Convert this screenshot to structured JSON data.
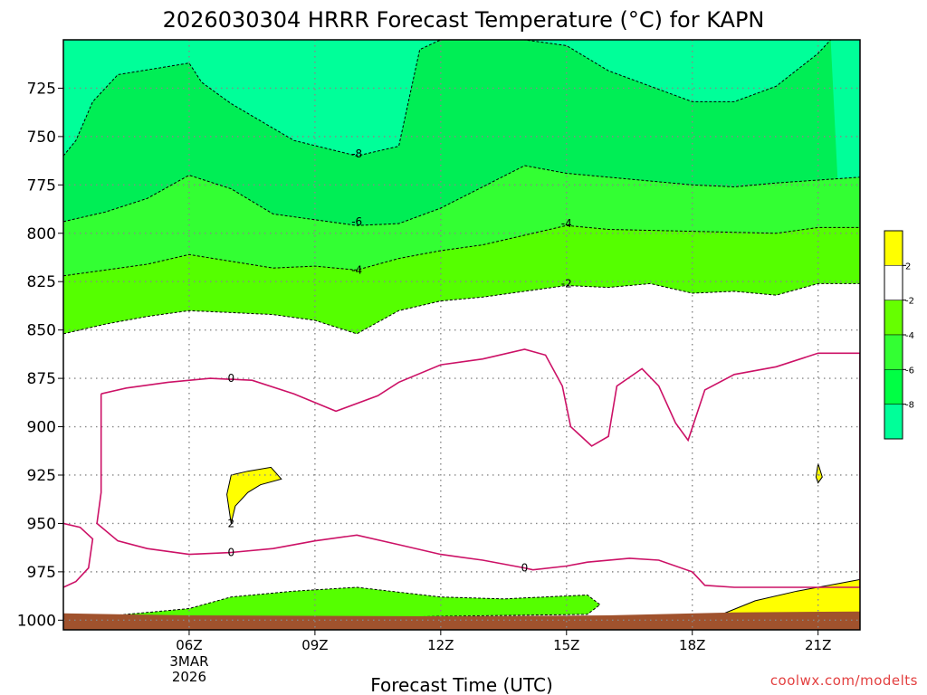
{
  "title": "2026030304 HRRR Forecast Temperature (°C) for KAPN",
  "credit": "coolwx.com/modelts",
  "chart_data": {
    "type": "contour",
    "title": "2026030304 HRRR Forecast Temperature (°C) for KAPN",
    "xlabel": "Forecast Time (UTC)",
    "ylabel": "",
    "x_ticks": [
      "06Z",
      "09Z",
      "12Z",
      "15Z",
      "18Z",
      "21Z"
    ],
    "x_tick_date": [
      "3MAR",
      "2026"
    ],
    "x_range_hours_utc": [
      3.0,
      22.0
    ],
    "y_ticks": [
      725,
      750,
      775,
      800,
      825,
      850,
      875,
      900,
      925,
      950,
      975,
      1000
    ],
    "y_range_hpa": [
      700,
      1005
    ],
    "y_reversed": true,
    "grid": true,
    "contour_levels": [
      -8,
      -6,
      -4,
      -2,
      0,
      2
    ],
    "contour_labels": [
      "-8",
      "-6",
      "-4",
      "-2",
      "0",
      "0",
      "2"
    ],
    "colorbar": {
      "placement": "right",
      "labels": [
        "2",
        "-2",
        "-4",
        "-6",
        "-8"
      ],
      "colors": [
        "#ffff00",
        "#ffffff",
        "#66ff00",
        "#33ff33",
        "#00ff44",
        "#00ff99"
      ]
    },
    "fill_colors": {
      "warm_above_0": "#ffff00",
      "range_m2_to_0": "#ffffff",
      "range_m4_to_m2": "#55ff00",
      "range_m6_to_m4": "#33ff33",
      "range_m8_to_m6": "#00ee55",
      "below_m8": "#00ff99",
      "ground": "#a0522d",
      "zero_line": "#cc1166"
    },
    "isotherms": [
      {
        "level": -8,
        "points": [
          [
            3.0,
            760
          ],
          [
            3.3,
            752
          ],
          [
            3.7,
            732
          ],
          [
            4.3,
            718
          ],
          [
            6.0,
            712
          ],
          [
            6.3,
            722
          ],
          [
            7.0,
            733
          ],
          [
            8.5,
            752
          ],
          [
            10.0,
            760
          ],
          [
            11.0,
            755
          ],
          [
            11.3,
            725
          ],
          [
            11.5,
            705
          ],
          [
            12.0,
            700
          ],
          [
            14.0,
            700
          ],
          [
            15.0,
            703
          ],
          [
            16.0,
            716
          ],
          [
            18.0,
            732
          ],
          [
            19.0,
            732
          ],
          [
            20.0,
            724
          ],
          [
            21.0,
            707
          ],
          [
            21.3,
            700
          ]
        ]
      },
      {
        "level": -6,
        "points": [
          [
            3.0,
            794
          ],
          [
            4.0,
            789
          ],
          [
            5.0,
            782
          ],
          [
            6.0,
            770
          ],
          [
            7.0,
            777
          ],
          [
            8.0,
            790
          ],
          [
            10.0,
            796
          ],
          [
            11.0,
            795
          ],
          [
            12.0,
            787
          ],
          [
            13.0,
            776
          ],
          [
            14.0,
            765
          ],
          [
            15.0,
            769
          ],
          [
            16.0,
            771
          ],
          [
            18.0,
            775
          ],
          [
            19.0,
            776
          ],
          [
            20.0,
            774
          ],
          [
            22.0,
            771
          ]
        ]
      },
      {
        "level": -4,
        "points": [
          [
            3.0,
            822
          ],
          [
            4.0,
            819
          ],
          [
            5.0,
            816
          ],
          [
            6.0,
            811
          ],
          [
            8.0,
            818
          ],
          [
            9.0,
            817
          ],
          [
            10.0,
            819
          ],
          [
            11.0,
            813
          ],
          [
            12.0,
            809
          ],
          [
            13.0,
            806
          ],
          [
            14.0,
            801
          ],
          [
            15.0,
            796
          ],
          [
            16.0,
            798
          ],
          [
            18.0,
            799
          ],
          [
            20.0,
            800
          ],
          [
            21.0,
            797
          ],
          [
            22.0,
            797
          ]
        ]
      },
      {
        "level": -2,
        "points": [
          [
            3.0,
            852
          ],
          [
            4.0,
            847
          ],
          [
            5.0,
            843
          ],
          [
            6.0,
            840
          ],
          [
            7.0,
            841
          ],
          [
            8.0,
            842
          ],
          [
            9.0,
            845
          ],
          [
            10.0,
            852
          ],
          [
            11.0,
            840
          ],
          [
            12.0,
            835
          ],
          [
            13.0,
            833
          ],
          [
            14.0,
            830
          ],
          [
            15.0,
            827
          ],
          [
            16.0,
            828
          ],
          [
            17.0,
            826
          ],
          [
            18.0,
            831
          ],
          [
            19.0,
            830
          ],
          [
            20.0,
            832
          ],
          [
            21.0,
            826
          ],
          [
            22.0,
            826
          ]
        ]
      }
    ],
    "zero_lines": [
      {
        "points": [
          [
            3.9,
            883
          ],
          [
            4.5,
            880
          ],
          [
            5.5,
            877
          ],
          [
            6.5,
            875
          ],
          [
            7.5,
            876
          ],
          [
            8.5,
            883
          ],
          [
            9.5,
            892
          ],
          [
            10.5,
            884
          ],
          [
            11.0,
            877
          ],
          [
            12.0,
            868
          ],
          [
            13.0,
            865
          ],
          [
            14.0,
            860
          ],
          [
            14.5,
            863
          ],
          [
            14.9,
            879
          ],
          [
            15.1,
            900
          ],
          [
            15.6,
            910
          ],
          [
            16.0,
            905
          ],
          [
            16.2,
            879
          ],
          [
            16.8,
            870
          ],
          [
            17.2,
            879
          ],
          [
            17.6,
            898
          ],
          [
            17.9,
            907
          ],
          [
            18.3,
            881
          ],
          [
            19.0,
            873
          ],
          [
            20.0,
            869
          ],
          [
            21.0,
            862
          ],
          [
            22.0,
            862
          ],
          [
            22.0,
            983
          ],
          [
            21.0,
            983
          ],
          [
            20.0,
            983
          ],
          [
            19.0,
            983
          ],
          [
            18.3,
            982
          ],
          [
            18.0,
            975
          ],
          [
            17.2,
            969
          ],
          [
            16.5,
            968
          ],
          [
            15.5,
            970
          ],
          [
            15.0,
            972
          ],
          [
            14.2,
            974
          ],
          [
            14.0,
            973
          ],
          [
            13.0,
            969
          ],
          [
            12.0,
            966
          ],
          [
            11.0,
            961
          ],
          [
            10.0,
            956
          ],
          [
            9.0,
            959
          ],
          [
            8.0,
            963
          ],
          [
            7.0,
            965
          ],
          [
            6.0,
            966
          ],
          [
            5.0,
            963
          ],
          [
            4.3,
            959
          ],
          [
            3.8,
            950
          ],
          [
            3.9,
            934
          ],
          [
            3.9,
            905
          ],
          [
            3.9,
            883
          ]
        ]
      },
      {
        "points": [
          [
            3.0,
            950
          ],
          [
            3.4,
            952
          ],
          [
            3.7,
            958
          ],
          [
            3.6,
            973
          ],
          [
            3.3,
            980
          ],
          [
            3.0,
            983
          ]
        ]
      }
    ],
    "warm_regions": [
      {
        "label": "2",
        "points": [
          [
            7.0,
            925
          ],
          [
            7.4,
            923
          ],
          [
            7.95,
            921
          ],
          [
            8.2,
            927
          ],
          [
            7.7,
            930
          ],
          [
            7.4,
            934
          ],
          [
            7.1,
            941
          ],
          [
            7.0,
            950
          ],
          [
            6.9,
            935
          ],
          [
            7.0,
            925
          ]
        ]
      },
      {
        "label": "",
        "points": [
          [
            21.0,
            919
          ],
          [
            21.1,
            926
          ],
          [
            21.0,
            929
          ],
          [
            20.95,
            926
          ],
          [
            21.0,
            919
          ]
        ]
      },
      {
        "label": "",
        "points": [
          [
            18.7,
            997
          ],
          [
            19.5,
            990
          ],
          [
            20.5,
            985
          ],
          [
            21.5,
            981
          ],
          [
            22.0,
            979
          ],
          [
            22.0,
            997
          ]
        ]
      }
    ],
    "near_surface_cold_pocket": {
      "level": -2,
      "points": [
        [
          4.0,
          998
        ],
        [
          5.0,
          996
        ],
        [
          6.0,
          994
        ],
        [
          7.0,
          988
        ],
        [
          8.5,
          985
        ],
        [
          10.0,
          983
        ],
        [
          12.0,
          988
        ],
        [
          13.5,
          989
        ],
        [
          15.5,
          987
        ],
        [
          15.8,
          992
        ],
        [
          15.5,
          997
        ],
        [
          12.0,
          998
        ],
        [
          10.0,
          999
        ],
        [
          8.0,
          999
        ],
        [
          6.0,
          999
        ],
        [
          4.0,
          998
        ]
      ]
    },
    "contour_label_positions": [
      {
        "text": "-8",
        "x": 10.0,
        "y": 759
      },
      {
        "text": "-6",
        "x": 10.0,
        "y": 794
      },
      {
        "text": "-4",
        "x": 10.0,
        "y": 819
      },
      {
        "text": "-4",
        "x": 15.0,
        "y": 795
      },
      {
        "text": "-2",
        "x": 15.0,
        "y": 826
      },
      {
        "text": "0",
        "x": 7.0,
        "y": 875
      },
      {
        "text": "0",
        "x": 7.0,
        "y": 965
      },
      {
        "text": "0",
        "x": 14.0,
        "y": 973
      },
      {
        "text": "2",
        "x": 7.0,
        "y": 950
      }
    ]
  }
}
